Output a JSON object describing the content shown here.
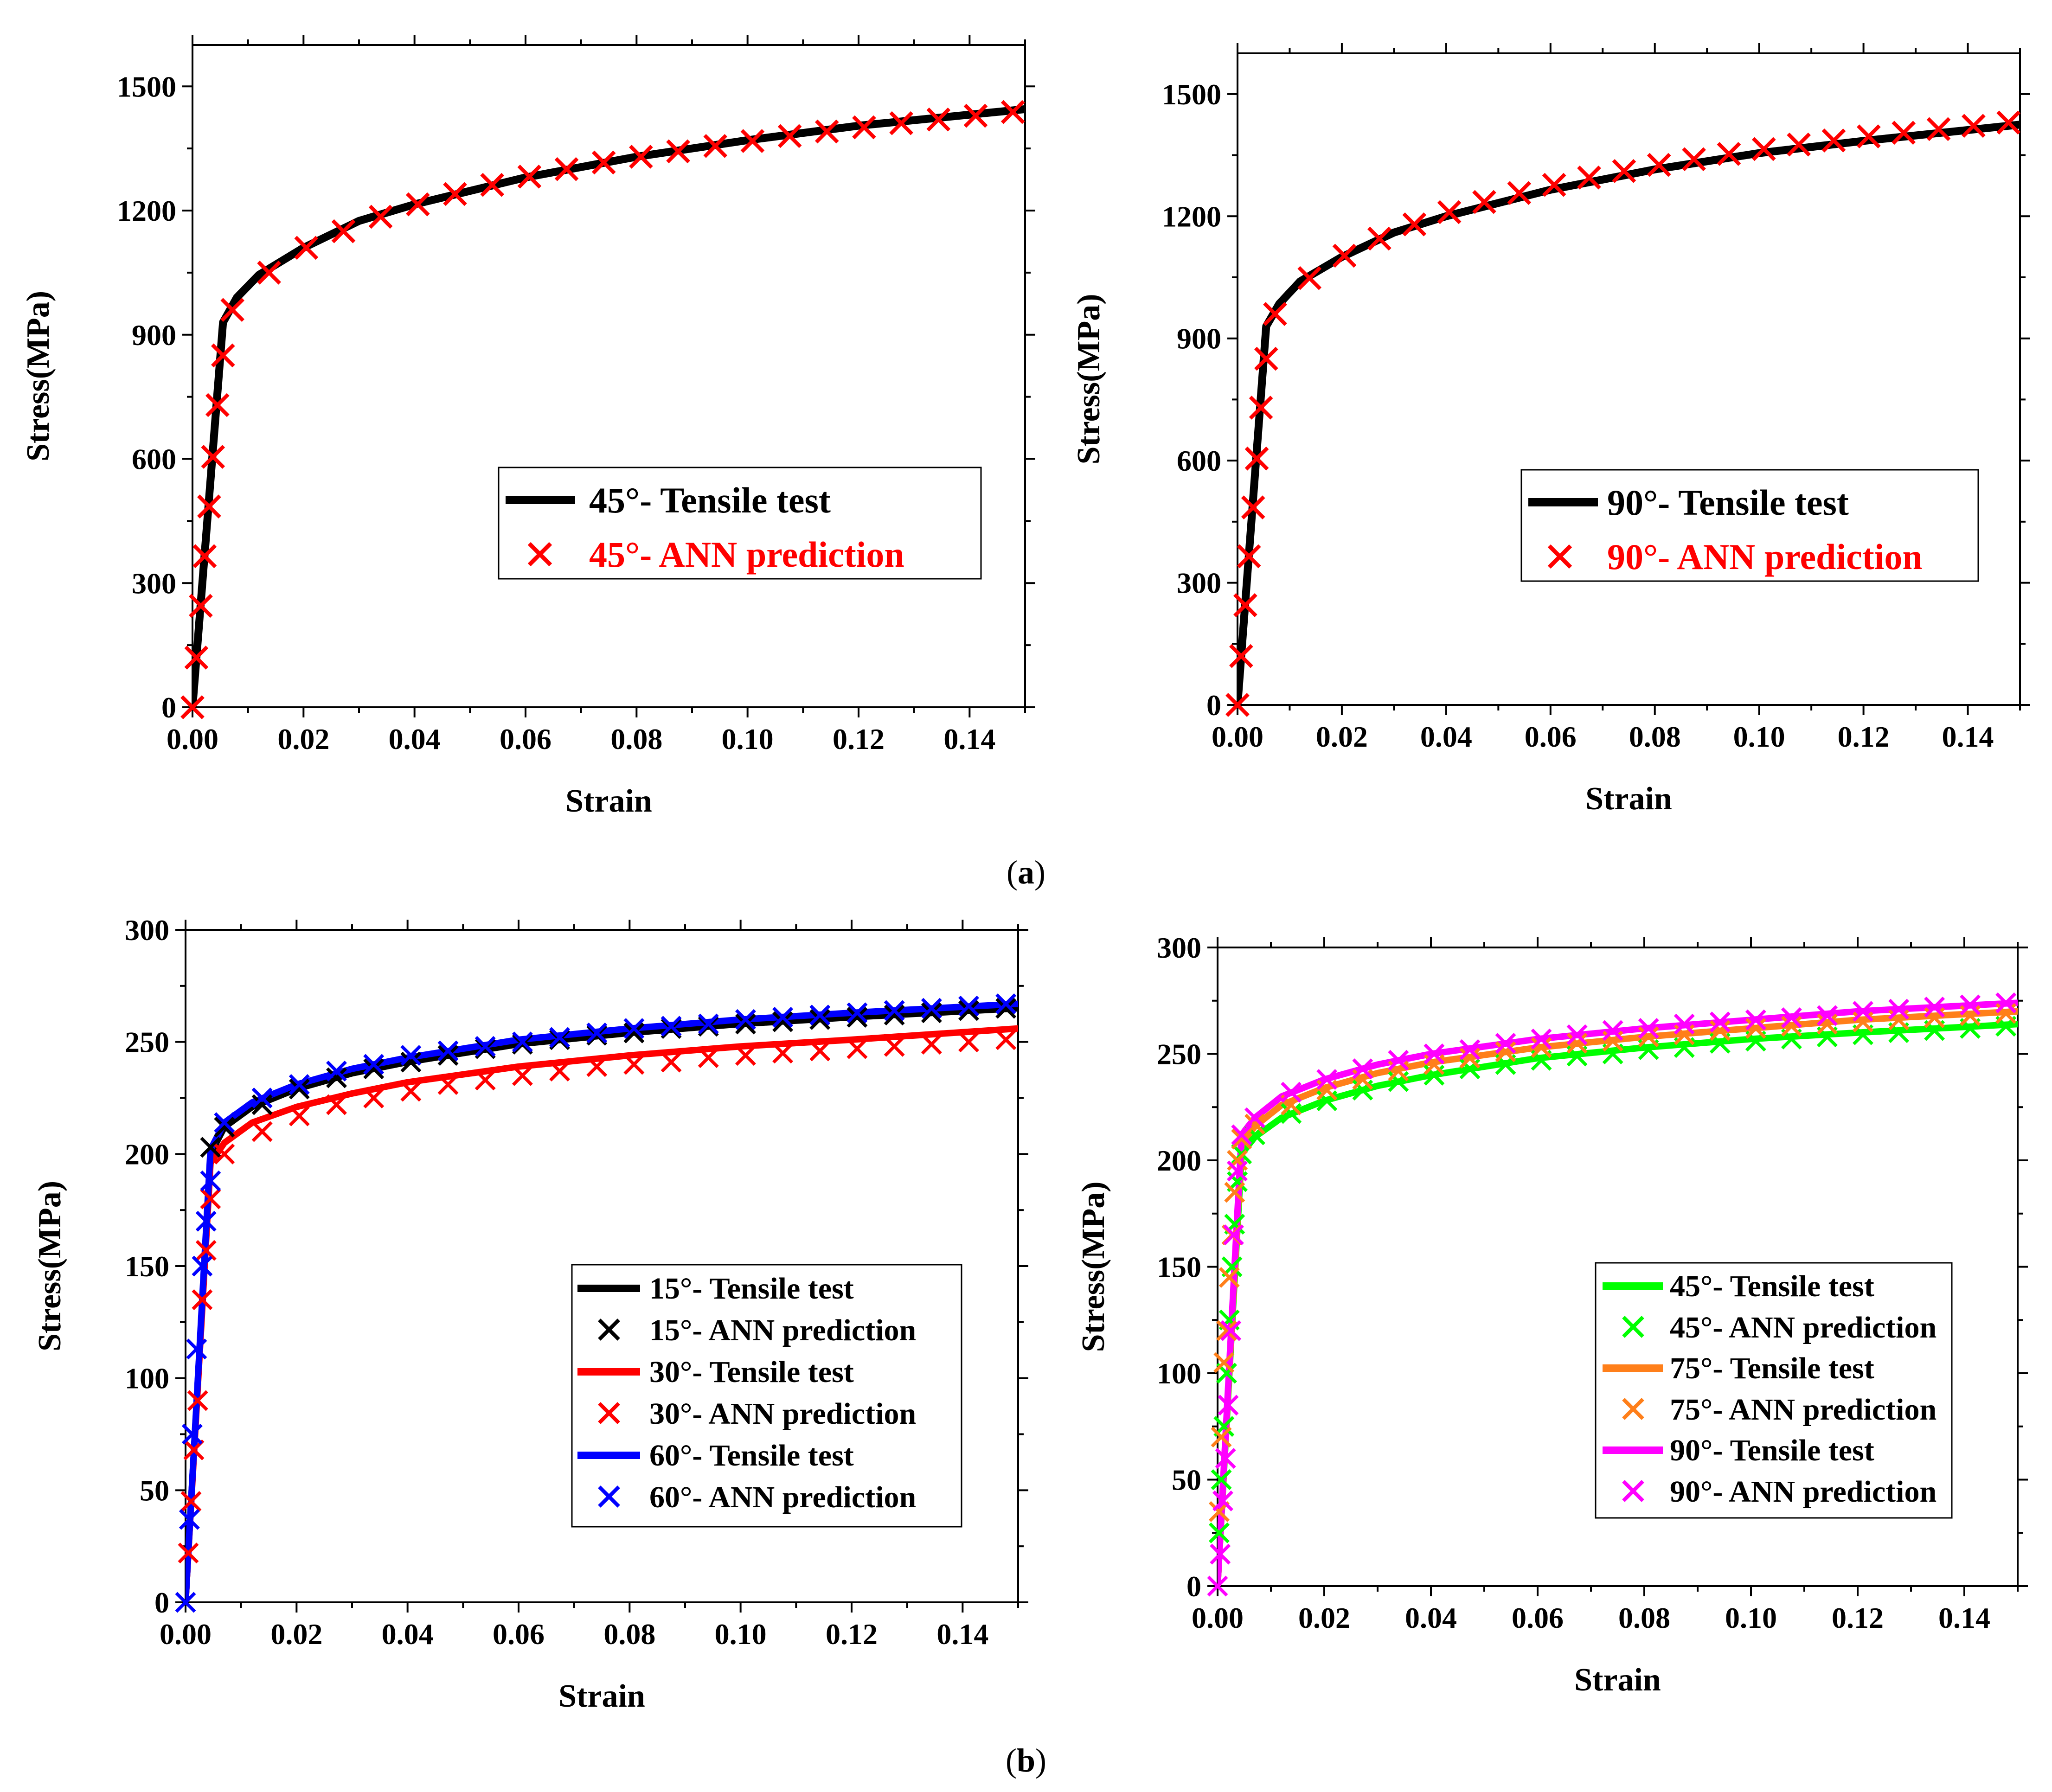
{
  "captions": {
    "a_open": "(",
    "a_letter": "a",
    "a_close": ")",
    "b_open": "(",
    "b_letter": "b",
    "b_close": ")"
  },
  "colors": {
    "black": "#000000",
    "red": "#ff0000",
    "blue": "#0000ff",
    "green": "#00ff00",
    "orange": "#ff7f1a",
    "magenta": "#ff00ff"
  },
  "chart_data": [
    {
      "id": "p1",
      "type": "line",
      "xlabel": "Strain",
      "ylabel": "Stress(MPa)",
      "xlim": [
        0,
        0.15
      ],
      "ylim": [
        0,
        1600
      ],
      "xticks": [
        0.0,
        0.02,
        0.04,
        0.06,
        0.08,
        0.1,
        0.12,
        0.14
      ],
      "xtick_labels": [
        "0.00",
        "0.02",
        "0.04",
        "0.06",
        "0.08",
        "0.10",
        "0.12",
        "0.14"
      ],
      "yticks": [
        0,
        300,
        600,
        900,
        1200,
        1500
      ],
      "ytick_labels": [
        "0",
        "300",
        "600",
        "900",
        "1200",
        "1500"
      ],
      "series": [
        {
          "name": "45°- Tensile test",
          "style": "line",
          "color": "#000000",
          "x": [
            0,
            0.0055,
            0.008,
            0.012,
            0.02,
            0.03,
            0.04,
            0.06,
            0.08,
            0.1,
            0.12,
            0.15
          ],
          "y": [
            0,
            930,
            990,
            1045,
            1110,
            1175,
            1215,
            1280,
            1330,
            1370,
            1405,
            1445
          ]
        },
        {
          "name": "45°- ANN prediction",
          "style": "marker",
          "color": "#ff0000",
          "x": [
            0,
            0.0007,
            0.0015,
            0.0022,
            0.003,
            0.0037,
            0.0045,
            0.0055,
            0.0072,
            0.0138,
            0.0205,
            0.0272,
            0.0339,
            0.0406,
            0.0473,
            0.054,
            0.0607,
            0.0674,
            0.0741,
            0.0808,
            0.0875,
            0.0942,
            0.1009,
            0.1076,
            0.1143,
            0.121,
            0.1277,
            0.1344,
            0.1411,
            0.1478
          ],
          "y": [
            0,
            120,
            245,
            365,
            485,
            605,
            730,
            850,
            960,
            1050,
            1110,
            1150,
            1185,
            1215,
            1240,
            1262,
            1282,
            1300,
            1316,
            1330,
            1343,
            1356,
            1368,
            1380,
            1391,
            1401,
            1411,
            1420,
            1429,
            1438
          ]
        }
      ]
    },
    {
      "id": "p2",
      "type": "line",
      "xlabel": "Strain",
      "ylabel": "Stress(MPa)",
      "xlim": [
        0,
        0.15
      ],
      "ylim": [
        0,
        1600
      ],
      "xticks": [
        0.0,
        0.02,
        0.04,
        0.06,
        0.08,
        0.1,
        0.12,
        0.14
      ],
      "xtick_labels": [
        "0.00",
        "0.02",
        "0.04",
        "0.06",
        "0.08",
        "0.10",
        "0.12",
        "0.14"
      ],
      "yticks": [
        0,
        300,
        600,
        900,
        1200,
        1500
      ],
      "ytick_labels": [
        "0",
        "300",
        "600",
        "900",
        "1200",
        "1500"
      ],
      "series": [
        {
          "name": "90°- Tensile test",
          "style": "line",
          "color": "#000000",
          "x": [
            0,
            0.0055,
            0.008,
            0.012,
            0.02,
            0.03,
            0.04,
            0.06,
            0.08,
            0.1,
            0.12,
            0.15
          ],
          "y": [
            0,
            930,
            985,
            1040,
            1100,
            1160,
            1200,
            1265,
            1315,
            1355,
            1385,
            1425
          ]
        },
        {
          "name": "90°- ANN prediction",
          "style": "marker",
          "color": "#ff0000",
          "x": [
            0,
            0.0007,
            0.0015,
            0.0022,
            0.003,
            0.0037,
            0.0045,
            0.0055,
            0.0072,
            0.0138,
            0.0205,
            0.0272,
            0.0339,
            0.0406,
            0.0473,
            0.054,
            0.0607,
            0.0674,
            0.0741,
            0.0808,
            0.0875,
            0.0942,
            0.1009,
            0.1076,
            0.1143,
            0.121,
            0.1277,
            0.1344,
            0.1411,
            0.1478
          ],
          "y": [
            0,
            120,
            245,
            365,
            485,
            605,
            730,
            850,
            960,
            1048,
            1103,
            1145,
            1180,
            1210,
            1235,
            1257,
            1277,
            1295,
            1311,
            1326,
            1340,
            1353,
            1365,
            1376,
            1386,
            1396,
            1405,
            1414,
            1422,
            1430
          ]
        }
      ]
    },
    {
      "id": "p3",
      "type": "line",
      "xlabel": "Strain",
      "ylabel": "Stress(MPa)",
      "xlim": [
        0,
        0.15
      ],
      "ylim": [
        0,
        300
      ],
      "xticks": [
        0.0,
        0.02,
        0.04,
        0.06,
        0.08,
        0.1,
        0.12,
        0.14
      ],
      "xtick_labels": [
        "0.00",
        "0.02",
        "0.04",
        "0.06",
        "0.08",
        "0.10",
        "0.12",
        "0.14"
      ],
      "yticks": [
        0,
        50,
        100,
        150,
        200,
        250,
        300
      ],
      "ytick_labels": [
        "0",
        "50",
        "100",
        "150",
        "200",
        "250",
        "300"
      ],
      "series": [
        {
          "name": "15°- Tensile test",
          "style": "line",
          "color": "#000000",
          "x": [
            0,
            0.0045,
            0.007,
            0.012,
            0.02,
            0.03,
            0.04,
            0.06,
            0.08,
            0.1,
            0.12,
            0.15
          ],
          "y": [
            0,
            200,
            212,
            221,
            229,
            236,
            241,
            249,
            254,
            258,
            261,
            265
          ]
        },
        {
          "name": "15°- ANN prediction",
          "style": "marker",
          "color": "#000000",
          "x": [
            0.0045,
            0.007,
            0.0138,
            0.0205,
            0.0272,
            0.0339,
            0.0406,
            0.0473,
            0.054,
            0.0607,
            0.0674,
            0.0741,
            0.0808,
            0.0875,
            0.0942,
            0.1009,
            0.1076,
            0.1143,
            0.121,
            0.1277,
            0.1344,
            0.1411,
            0.1478
          ],
          "y": [
            203,
            212,
            222,
            229,
            234,
            238,
            241,
            244,
            247,
            249,
            251,
            253,
            254,
            256,
            257,
            258,
            259,
            260,
            261,
            262,
            263,
            264,
            265
          ]
        },
        {
          "name": "30°- Tensile test",
          "style": "line",
          "color": "#ff0000",
          "x": [
            0,
            0.0045,
            0.007,
            0.012,
            0.02,
            0.03,
            0.04,
            0.06,
            0.08,
            0.1,
            0.12,
            0.15
          ],
          "y": [
            0,
            196,
            205,
            214,
            221,
            227,
            232,
            239,
            244,
            248,
            251,
            256
          ]
        },
        {
          "name": "30°- ANN prediction",
          "style": "marker",
          "color": "#ff0000",
          "x": [
            0.0005,
            0.001,
            0.0015,
            0.0022,
            0.003,
            0.0037,
            0.0045,
            0.007,
            0.0138,
            0.0205,
            0.0272,
            0.0339,
            0.0406,
            0.0473,
            0.054,
            0.0607,
            0.0674,
            0.0741,
            0.0808,
            0.0875,
            0.0942,
            0.1009,
            0.1076,
            0.1143,
            0.121,
            0.1277,
            0.1344,
            0.1411,
            0.1478
          ],
          "y": [
            22,
            45,
            68,
            90,
            135,
            157,
            180,
            200,
            210,
            217,
            222,
            225,
            228,
            231,
            233,
            235,
            237,
            239,
            240,
            241,
            243,
            244,
            245,
            246,
            247,
            248,
            249,
            250,
            251
          ]
        },
        {
          "name": "60°- Tensile test",
          "style": "line",
          "color": "#0000ff",
          "x": [
            0,
            0.0045,
            0.007,
            0.012,
            0.02,
            0.03,
            0.04,
            0.06,
            0.08,
            0.1,
            0.12,
            0.15
          ],
          "y": [
            0,
            202,
            214,
            223,
            231,
            238,
            243,
            251,
            256,
            260,
            263,
            267
          ]
        },
        {
          "name": "60°- ANN prediction",
          "style": "marker",
          "color": "#0000ff",
          "x": [
            0,
            0.0007,
            0.0012,
            0.002,
            0.003,
            0.0037,
            0.0045,
            0.007,
            0.0138,
            0.0205,
            0.0272,
            0.0339,
            0.0406,
            0.0473,
            0.054,
            0.0607,
            0.0674,
            0.0741,
            0.0808,
            0.0875,
            0.0942,
            0.1009,
            0.1076,
            0.1143,
            0.121,
            0.1277,
            0.1344,
            0.1411,
            0.1478
          ],
          "y": [
            0,
            37,
            75,
            113,
            150,
            170,
            188,
            214,
            225,
            231,
            237,
            240,
            244,
            246,
            248,
            250,
            252,
            254,
            256,
            257,
            258,
            260,
            261,
            262,
            263,
            264,
            265,
            266,
            267
          ]
        }
      ]
    },
    {
      "id": "p4",
      "type": "line",
      "xlabel": "Strain",
      "ylabel": "Stress(MPa)",
      "xlim": [
        0,
        0.15
      ],
      "ylim": [
        0,
        300
      ],
      "xticks": [
        0.0,
        0.02,
        0.04,
        0.06,
        0.08,
        0.1,
        0.12,
        0.14
      ],
      "xtick_labels": [
        "0.00",
        "0.02",
        "0.04",
        "0.06",
        "0.08",
        "0.10",
        "0.12",
        "0.14"
      ],
      "yticks": [
        0,
        50,
        100,
        150,
        200,
        250,
        300
      ],
      "ytick_labels": [
        "0",
        "50",
        "100",
        "150",
        "200",
        "250",
        "300"
      ],
      "series": [
        {
          "name": "45°- Tensile test",
          "style": "line",
          "color": "#00ff00",
          "x": [
            0,
            0.0045,
            0.007,
            0.012,
            0.02,
            0.03,
            0.04,
            0.06,
            0.08,
            0.1,
            0.12,
            0.15
          ],
          "y": [
            0,
            203,
            211,
            220,
            228,
            235,
            240,
            248,
            253,
            257,
            260,
            264
          ]
        },
        {
          "name": "45°- ANN prediction",
          "style": "marker",
          "color": "#00ff00",
          "x": [
            0.0003,
            0.0007,
            0.0012,
            0.0017,
            0.0022,
            0.0027,
            0.0032,
            0.0037,
            0.0045,
            0.007,
            0.0138,
            0.0205,
            0.0272,
            0.0339,
            0.0406,
            0.0473,
            0.054,
            0.0607,
            0.0674,
            0.0741,
            0.0808,
            0.0875,
            0.0942,
            0.1009,
            0.1076,
            0.1143,
            0.121,
            0.1277,
            0.1344,
            0.1411,
            0.1478
          ],
          "y": [
            25,
            50,
            75,
            100,
            125,
            150,
            170,
            190,
            203,
            212,
            222,
            228,
            233,
            237,
            240,
            243,
            245,
            247,
            249,
            250,
            252,
            253,
            255,
            256,
            257,
            258,
            259,
            260,
            261,
            262,
            263
          ]
        },
        {
          "name": "75°- Tensile test",
          "style": "line",
          "color": "#ff7f1a",
          "x": [
            0,
            0.0045,
            0.007,
            0.012,
            0.02,
            0.03,
            0.04,
            0.06,
            0.08,
            0.1,
            0.12,
            0.15
          ],
          "y": [
            0,
            208,
            216,
            226,
            234,
            241,
            246,
            253,
            258,
            262,
            266,
            270
          ]
        },
        {
          "name": "75°- ANN prediction",
          "style": "marker",
          "color": "#ff7f1a",
          "x": [
            0.0003,
            0.0007,
            0.0012,
            0.0017,
            0.0022,
            0.0027,
            0.0032,
            0.0037,
            0.0045,
            0.007,
            0.0138,
            0.0205,
            0.0272,
            0.0339,
            0.0406,
            0.0473,
            0.054,
            0.0607,
            0.0674,
            0.0741,
            0.0808,
            0.0875,
            0.0942,
            0.1009,
            0.1076,
            0.1143,
            0.121,
            0.1277,
            0.1344,
            0.1411,
            0.1478
          ],
          "y": [
            35,
            70,
            105,
            120,
            145,
            165,
            185,
            200,
            210,
            217,
            226,
            233,
            238,
            242,
            245,
            248,
            251,
            253,
            255,
            256,
            258,
            259,
            261,
            262,
            263,
            264,
            265,
            266,
            267,
            268,
            269
          ]
        },
        {
          "name": "90°- Tensile test",
          "style": "line",
          "color": "#ff00ff",
          "x": [
            0,
            0.0045,
            0.007,
            0.012,
            0.02,
            0.03,
            0.04,
            0.06,
            0.08,
            0.1,
            0.12,
            0.15
          ],
          "y": [
            0,
            212,
            220,
            230,
            238,
            245,
            250,
            257,
            262,
            266,
            270,
            274
          ]
        },
        {
          "name": "90°- ANN prediction",
          "style": "marker",
          "color": "#ff00ff",
          "x": [
            0,
            0.0005,
            0.001,
            0.0015,
            0.002,
            0.0025,
            0.003,
            0.0037,
            0.0045,
            0.007,
            0.0138,
            0.0205,
            0.0272,
            0.0339,
            0.0406,
            0.0473,
            0.054,
            0.0607,
            0.0674,
            0.0741,
            0.0808,
            0.0875,
            0.0942,
            0.1009,
            0.1076,
            0.1143,
            0.121,
            0.1277,
            0.1344,
            0.1411,
            0.1478
          ],
          "y": [
            0,
            15,
            40,
            60,
            85,
            120,
            165,
            195,
            212,
            220,
            232,
            238,
            243,
            247,
            250,
            252,
            255,
            257,
            259,
            261,
            262,
            264,
            265,
            266,
            267,
            268,
            270,
            271,
            272,
            273,
            274
          ]
        }
      ]
    }
  ]
}
